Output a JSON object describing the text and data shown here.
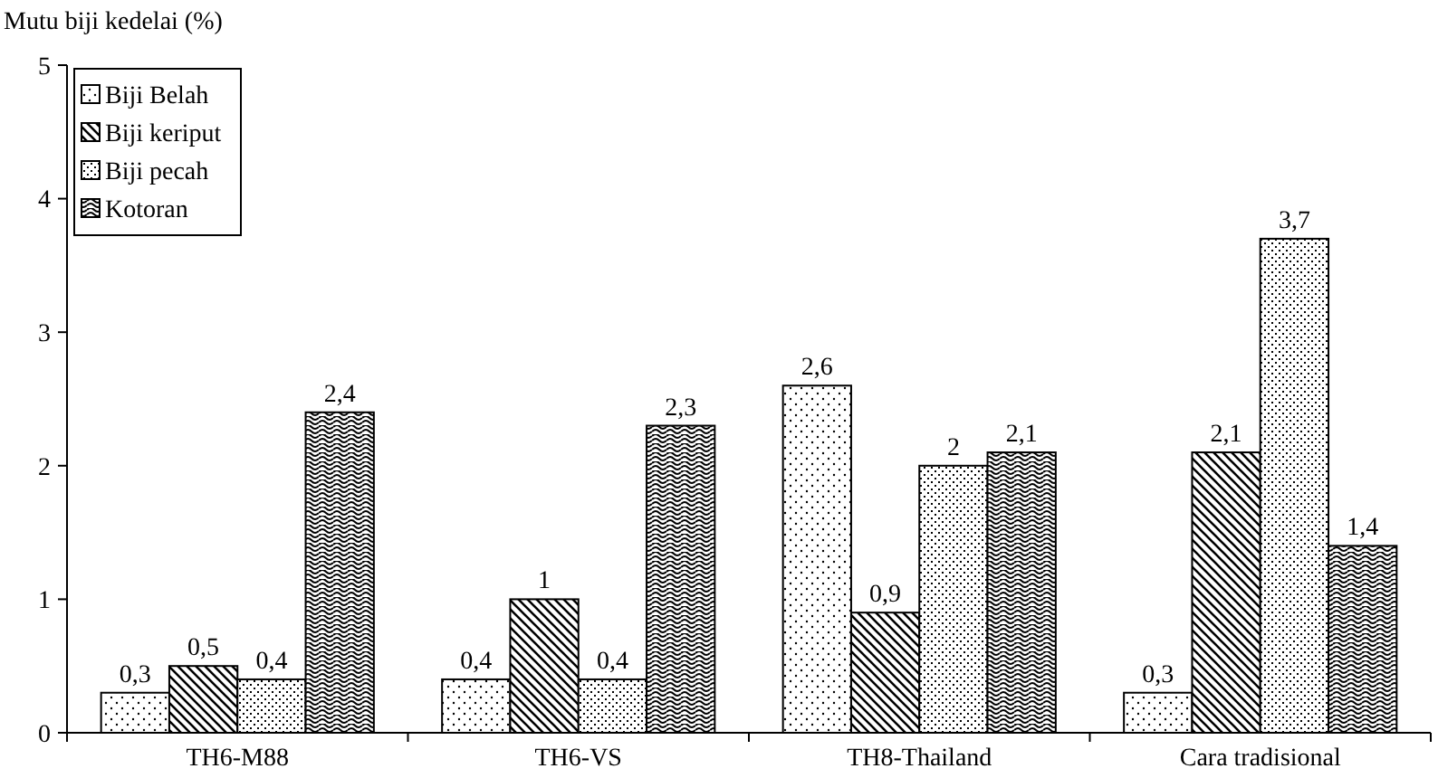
{
  "chart_data": {
    "type": "bar",
    "ylabel": "Mutu biji kedelai (%)",
    "categories": [
      "TH6-M88",
      "TH6-VS",
      "TH8-Thailand",
      "Cara tradisional"
    ],
    "series": [
      {
        "name": "Biji Belah",
        "color": "#000000",
        "values": [
          0.3,
          0.4,
          2.6,
          0.3
        ],
        "value_labels": [
          "0,3",
          "0,4",
          "2,6",
          "0,3"
        ]
      },
      {
        "name": "Biji keriput",
        "color": "#000000",
        "values": [
          0.5,
          1,
          0.9,
          2.1
        ],
        "value_labels": [
          "0,5",
          "1",
          "0,9",
          "2,1"
        ]
      },
      {
        "name": "Biji pecah",
        "color": "#000000",
        "values": [
          0.4,
          0.4,
          2,
          3.7
        ],
        "value_labels": [
          "0,4",
          "0,4",
          "2",
          "3,7"
        ]
      },
      {
        "name": "Kotoran",
        "color": "#000000",
        "values": [
          2.4,
          2.3,
          2.1,
          1.4
        ],
        "value_labels": [
          "2,4",
          "2,3",
          "2,1",
          "1,4"
        ]
      }
    ],
    "ylim": [
      0,
      5
    ],
    "yticks": [
      0,
      1,
      2,
      3,
      4,
      5
    ],
    "grid": false,
    "legend": "top left"
  }
}
